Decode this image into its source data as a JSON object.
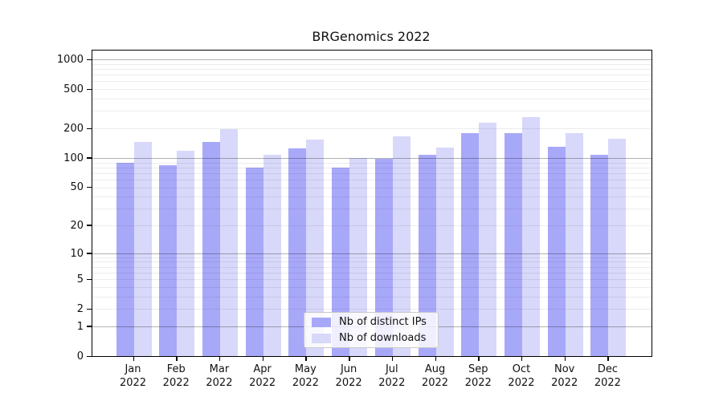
{
  "title": "BRGenomics 2022",
  "chart_data": {
    "type": "bar",
    "title": "BRGenomics 2022",
    "categories": [
      {
        "month": "Jan",
        "year": "2022"
      },
      {
        "month": "Feb",
        "year": "2022"
      },
      {
        "month": "Mar",
        "year": "2022"
      },
      {
        "month": "Apr",
        "year": "2022"
      },
      {
        "month": "May",
        "year": "2022"
      },
      {
        "month": "Jun",
        "year": "2022"
      },
      {
        "month": "Jul",
        "year": "2022"
      },
      {
        "month": "Aug",
        "year": "2022"
      },
      {
        "month": "Sep",
        "year": "2022"
      },
      {
        "month": "Oct",
        "year": "2022"
      },
      {
        "month": "Nov",
        "year": "2022"
      },
      {
        "month": "Dec",
        "year": "2022"
      }
    ],
    "series": [
      {
        "name": "Nb of distinct IPs",
        "color": "#a8a8f9",
        "values": [
          90,
          85,
          145,
          80,
          125,
          80,
          98,
          108,
          180,
          180,
          130,
          108
        ]
      },
      {
        "name": "Nb of downloads",
        "color": "#d8d8fa",
        "values": [
          145,
          118,
          195,
          108,
          155,
          100,
          165,
          128,
          230,
          260,
          180,
          158
        ]
      }
    ],
    "xlabel": "",
    "ylabel": "",
    "y_axis": {
      "scale": "log10(1+x)",
      "ticks": [
        0,
        1,
        2,
        5,
        10,
        20,
        50,
        100,
        200,
        500,
        1000
      ],
      "decade_gridlines": [
        1,
        10,
        100,
        1000
      ],
      "max_value": 1230
    },
    "grid": "horizontal minor + decade lines, drawn over bars",
    "legend_position": "bottom-center-inside"
  }
}
